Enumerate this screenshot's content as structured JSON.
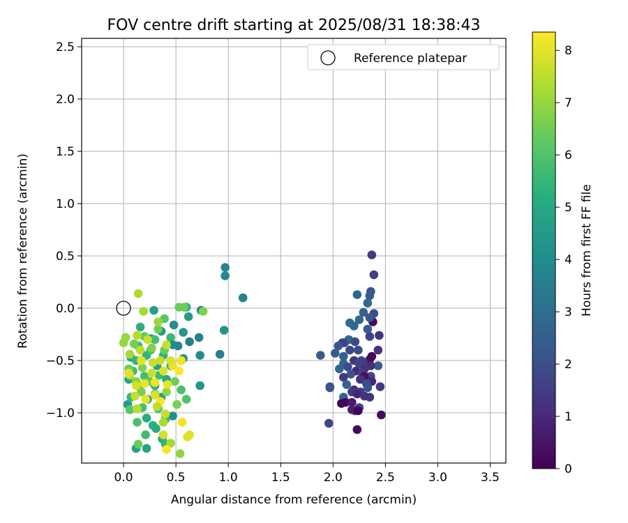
{
  "chart_data": {
    "type": "scatter",
    "title": "FOV centre drift starting at 2025/08/31 18:38:43",
    "xlabel": "Angular distance from reference (arcmin)",
    "ylabel": "Rotation from reference (arcmin)",
    "xlim": [
      -0.4,
      3.65
    ],
    "ylim": [
      -1.48,
      2.58
    ],
    "xticks": [
      "0.0",
      "0.5",
      "1.0",
      "1.5",
      "2.0",
      "2.5",
      "3.0",
      "3.5"
    ],
    "yticks": [
      "−1.0",
      "−0.5",
      "0.0",
      "0.5",
      "1.0",
      "1.5",
      "2.0",
      "2.5"
    ],
    "grid": true,
    "legend": {
      "placement": "top-right",
      "entries": [
        "Reference platepar"
      ]
    },
    "reference_point": {
      "x": 0.0,
      "y": 0.0,
      "label": "Reference platepar"
    },
    "colorbar": {
      "label": "Hours from first FF file",
      "min": 0,
      "max": 8.35,
      "colormap": "viridis",
      "ticks": [
        "0",
        "1",
        "2",
        "3",
        "4",
        "5",
        "6",
        "7",
        "8"
      ]
    },
    "series": [
      {
        "points": [
          [
            2.37,
            0.51,
            1.5
          ],
          [
            2.39,
            0.32,
            1.6
          ],
          [
            2.36,
            0.16,
            2.2
          ],
          [
            2.35,
            0.12,
            2.4
          ],
          [
            2.23,
            0.13,
            2.7
          ],
          [
            2.33,
            0.05,
            2.8
          ],
          [
            2.39,
            -0.05,
            2.0
          ],
          [
            2.29,
            -0.04,
            2.6
          ],
          [
            2.38,
            -0.13,
            0.2
          ],
          [
            2.35,
            -0.09,
            2.3
          ],
          [
            2.25,
            -0.11,
            2.8
          ],
          [
            2.16,
            -0.14,
            3.0
          ],
          [
            2.2,
            -0.17,
            2.9
          ],
          [
            2.33,
            -0.2,
            2.4
          ],
          [
            2.44,
            -0.26,
            1.3
          ],
          [
            2.35,
            -0.27,
            1.7
          ],
          [
            2.15,
            -0.3,
            2.9
          ],
          [
            2.11,
            -0.33,
            2.3
          ],
          [
            2.21,
            -0.32,
            1.8
          ],
          [
            2.09,
            -0.33,
            1.6
          ],
          [
            2.05,
            -0.36,
            2.2
          ],
          [
            2.43,
            -0.4,
            1.2
          ],
          [
            2.24,
            -0.4,
            1.9
          ],
          [
            2.16,
            -0.4,
            1.8
          ],
          [
            2.02,
            -0.43,
            2.3
          ],
          [
            1.88,
            -0.45,
            2.4
          ],
          [
            2.1,
            -0.46,
            2.5
          ],
          [
            2.37,
            -0.46,
            0.2
          ],
          [
            2.35,
            -0.49,
            0.3
          ],
          [
            2.2,
            -0.5,
            1.3
          ],
          [
            2.27,
            -0.5,
            2.0
          ],
          [
            2.29,
            -0.52,
            1.5
          ],
          [
            2.25,
            -0.53,
            1.7
          ],
          [
            2.1,
            -0.53,
            2.7
          ],
          [
            2.43,
            -0.55,
            2.4
          ],
          [
            2.36,
            -0.55,
            1.1
          ],
          [
            2.14,
            -0.56,
            1.9
          ],
          [
            2.06,
            -0.58,
            2.8
          ],
          [
            2.3,
            -0.58,
            1.3
          ],
          [
            2.22,
            -0.6,
            1.0
          ],
          [
            2.17,
            -0.63,
            2.2
          ],
          [
            2.28,
            -0.62,
            1.6
          ],
          [
            2.36,
            -0.65,
            1.8
          ],
          [
            2.3,
            -0.65,
            0.4
          ],
          [
            2.1,
            -0.66,
            1.4
          ],
          [
            2.26,
            -0.68,
            1.2
          ],
          [
            2.37,
            -0.7,
            0.9
          ],
          [
            2.32,
            -0.72,
            1.9
          ],
          [
            2.13,
            -0.73,
            2.6
          ],
          [
            2.45,
            -0.75,
            1.4
          ],
          [
            1.97,
            -0.75,
            2.4
          ],
          [
            2.33,
            -0.76,
            2.1
          ],
          [
            1.97,
            -0.76,
            2.2
          ],
          [
            2.2,
            -0.78,
            1.1
          ],
          [
            2.18,
            -0.8,
            1.4
          ],
          [
            2.26,
            -0.8,
            1.6
          ],
          [
            2.23,
            -0.82,
            0.9
          ],
          [
            2.3,
            -0.84,
            1.3
          ],
          [
            2.1,
            -0.85,
            2.7
          ],
          [
            2.35,
            -0.85,
            1.2
          ],
          [
            2.12,
            -0.9,
            0.2
          ],
          [
            2.18,
            -0.9,
            0.6
          ],
          [
            2.08,
            -0.91,
            0.1
          ],
          [
            2.25,
            -0.95,
            1.7
          ],
          [
            2.21,
            -0.98,
            1.2
          ],
          [
            2.18,
            -0.97,
            0.8
          ],
          [
            2.24,
            -0.98,
            0.1
          ],
          [
            2.46,
            -1.02,
            0.3
          ],
          [
            1.96,
            -1.1,
            1.8
          ],
          [
            2.23,
            -1.16,
            0.2
          ],
          [
            0.97,
            0.39,
            3.8
          ],
          [
            0.97,
            0.31,
            3.9
          ],
          [
            1.14,
            0.1,
            3.7
          ],
          [
            0.92,
            -0.44,
            3.6
          ],
          [
            0.96,
            -0.21,
            4.3
          ],
          [
            0.74,
            -0.02,
            3.8
          ],
          [
            0.72,
            -0.28,
            3.7
          ],
          [
            0.73,
            -0.45,
            4.0
          ],
          [
            0.73,
            -0.74,
            4.4
          ],
          [
            0.6,
            0.01,
            4.9
          ],
          [
            0.62,
            -0.08,
            4.6
          ],
          [
            0.57,
            -0.23,
            4.5
          ],
          [
            0.63,
            -0.32,
            3.5
          ],
          [
            0.52,
            -0.36,
            3.8
          ],
          [
            0.57,
            -0.48,
            4.2
          ],
          [
            0.48,
            -0.16,
            4.1
          ],
          [
            0.45,
            -0.28,
            5.6
          ],
          [
            0.47,
            -0.35,
            4.0
          ],
          [
            0.36,
            -0.22,
            4.5
          ],
          [
            0.29,
            -0.02,
            4.7
          ],
          [
            0.26,
            -0.29,
            4.4
          ],
          [
            0.16,
            -0.18,
            5.3
          ],
          [
            0.07,
            -0.47,
            5.1
          ],
          [
            0.05,
            -0.68,
            4.9
          ],
          [
            0.04,
            -0.92,
            4.6
          ],
          [
            0.12,
            -1.34,
            4.6
          ],
          [
            0.22,
            -1.34,
            4.9
          ],
          [
            0.22,
            -1.05,
            5.2
          ],
          [
            0.28,
            -1.12,
            5.3
          ],
          [
            0.36,
            -0.85,
            4.8
          ],
          [
            0.37,
            -1.25,
            5.2
          ],
          [
            0.47,
            -1.03,
            4.1
          ],
          [
            0.41,
            -0.68,
            5.0
          ],
          [
            0.3,
            -0.74,
            5.4
          ],
          [
            0.2,
            -0.65,
            5.8
          ],
          [
            0.32,
            -0.55,
            4.7
          ],
          [
            0.22,
            -0.45,
            5.4
          ],
          [
            0.14,
            -0.36,
            5.6
          ],
          [
            0.26,
            -0.4,
            5.9
          ],
          [
            0.12,
            -0.5,
            5.5
          ],
          [
            0.09,
            -0.6,
            5.7
          ],
          [
            0.15,
            -0.75,
            6.0
          ],
          [
            0.07,
            -0.85,
            5.6
          ],
          [
            0.18,
            -0.95,
            5.8
          ],
          [
            0.23,
            -0.87,
            5.1
          ],
          [
            0.33,
            -0.96,
            5.9
          ],
          [
            0.4,
            -1.06,
            5.5
          ],
          [
            0.13,
            -1.09,
            5.9
          ],
          [
            0.31,
            -1.15,
            5.2
          ],
          [
            0.21,
            -1.21,
            5.7
          ],
          [
            0.4,
            -1.3,
            5.4
          ],
          [
            0.3,
            -0.3,
            5.8
          ],
          [
            0.38,
            -0.45,
            5.3
          ],
          [
            0.45,
            -0.55,
            5.6
          ],
          [
            0.55,
            -0.5,
            5.9
          ],
          [
            0.6,
            -0.87,
            6.0
          ],
          [
            0.58,
            0.01,
            6.4
          ],
          [
            0.39,
            -0.1,
            6.2
          ],
          [
            0.33,
            -0.2,
            6.5
          ],
          [
            0.2,
            -0.27,
            6.3
          ],
          [
            0.1,
            -0.34,
            6.6
          ],
          [
            0.05,
            -0.58,
            6.4
          ],
          [
            0.18,
            -0.57,
            6.7
          ],
          [
            0.25,
            -0.7,
            6.3
          ],
          [
            0.12,
            -0.7,
            6.8
          ],
          [
            0.06,
            -0.97,
            6.2
          ],
          [
            0.17,
            -0.8,
            6.6
          ],
          [
            0.3,
            -0.82,
            6.2
          ],
          [
            0.41,
            -0.8,
            6.9
          ],
          [
            0.49,
            -0.7,
            6.5
          ],
          [
            0.51,
            -0.92,
            6.6
          ],
          [
            0.14,
            -1.3,
            6.4
          ],
          [
            0.27,
            -0.38,
            6.7
          ],
          [
            0.39,
            -0.4,
            6.4
          ],
          [
            0.53,
            0.01,
            6.4
          ],
          [
            0.76,
            -0.03,
            6.7
          ],
          [
            0.55,
            -0.78,
            5.9
          ],
          [
            0.34,
            -0.64,
            5.6
          ],
          [
            0.14,
            0.14,
            7.3
          ],
          [
            0.19,
            -0.03,
            7.2
          ],
          [
            0.33,
            -0.13,
            7.1
          ],
          [
            0.02,
            -0.28,
            7.0
          ],
          [
            0.0,
            -0.33,
            7.0
          ],
          [
            0.13,
            -0.26,
            7.4
          ],
          [
            0.23,
            -0.3,
            7.7
          ],
          [
            0.41,
            -0.35,
            7.6
          ],
          [
            0.06,
            -0.44,
            7.2
          ],
          [
            0.06,
            -0.64,
            7.5
          ],
          [
            0.17,
            -0.5,
            8.0
          ],
          [
            0.28,
            -0.52,
            7.6
          ],
          [
            0.47,
            -0.55,
            8.1
          ],
          [
            0.55,
            -0.5,
            8.2
          ],
          [
            0.53,
            -0.6,
            8.3
          ],
          [
            0.38,
            -0.6,
            7.9
          ],
          [
            0.27,
            -0.62,
            7.7
          ],
          [
            0.42,
            -0.73,
            8.1
          ],
          [
            0.3,
            -0.71,
            8.2
          ],
          [
            0.2,
            -0.72,
            8.1
          ],
          [
            0.12,
            -0.74,
            7.8
          ],
          [
            0.11,
            -0.84,
            7.6
          ],
          [
            0.21,
            -0.87,
            8.1
          ],
          [
            0.35,
            -0.89,
            8.3
          ],
          [
            0.32,
            -0.94,
            7.5
          ],
          [
            0.13,
            -0.96,
            7.4
          ],
          [
            0.4,
            -1.01,
            7.6
          ],
          [
            0.38,
            -1.09,
            7.3
          ],
          [
            0.56,
            -1.09,
            8.2
          ],
          [
            0.38,
            -1.21,
            7.8
          ],
          [
            0.63,
            -1.21,
            7.9
          ],
          [
            0.61,
            -1.23,
            8.0
          ],
          [
            0.45,
            -1.29,
            7.2
          ],
          [
            0.54,
            -1.39,
            6.9
          ],
          [
            0.41,
            -1.35,
            8.3
          ],
          [
            0.05,
            -0.62,
            8.0
          ],
          [
            0.45,
            -0.5,
            7.9
          ],
          [
            0.3,
            -0.83,
            7.9
          ],
          [
            0.16,
            -0.4,
            7.5
          ],
          [
            0.35,
            -0.5,
            7.6
          ]
        ]
      }
    ]
  }
}
